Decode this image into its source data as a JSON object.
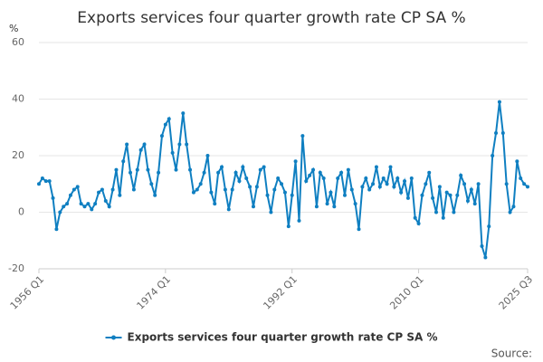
{
  "chart_data": {
    "type": "line",
    "title": "Exports services four quarter growth rate CP SA %",
    "y_unit": "%",
    "source": "Source:",
    "x": [
      1956,
      1956.5,
      1957,
      1957.5,
      1958,
      1958.5,
      1959,
      1959.5,
      1960,
      1960.5,
      1961,
      1961.5,
      1962,
      1962.5,
      1963,
      1963.5,
      1964,
      1964.5,
      1965,
      1965.5,
      1966,
      1966.5,
      1967,
      1967.5,
      1968,
      1968.5,
      1969,
      1969.5,
      1970,
      1970.5,
      1971,
      1971.5,
      1972,
      1972.5,
      1973,
      1973.5,
      1974,
      1974.5,
      1975,
      1975.5,
      1976,
      1976.5,
      1977,
      1977.5,
      1978,
      1978.5,
      1979,
      1979.5,
      1980,
      1980.5,
      1981,
      1981.5,
      1982,
      1982.5,
      1983,
      1983.5,
      1984,
      1984.5,
      1985,
      1985.5,
      1986,
      1986.5,
      1987,
      1987.5,
      1988,
      1988.5,
      1989,
      1989.5,
      1990,
      1990.5,
      1991,
      1991.5,
      1992,
      1992.5,
      1993,
      1993.5,
      1994,
      1994.5,
      1995,
      1995.5,
      1996,
      1996.5,
      1997,
      1997.5,
      1998,
      1998.5,
      1999,
      1999.5,
      2000,
      2000.5,
      2001,
      2001.5,
      2002,
      2002.5,
      2003,
      2003.5,
      2004,
      2004.5,
      2005,
      2005.5,
      2006,
      2006.5,
      2007,
      2007.5,
      2008,
      2008.5,
      2009,
      2009.5,
      2010,
      2010.5,
      2011,
      2011.5,
      2012,
      2012.5,
      2013,
      2013.5,
      2014,
      2014.5,
      2015,
      2015.5,
      2016,
      2016.5,
      2017,
      2017.5,
      2018,
      2018.5,
      2019,
      2019.5,
      2020,
      2020.5,
      2021,
      2021.5,
      2022,
      2022.5,
      2023,
      2023.5,
      2024,
      2024.5,
      2025,
      2025.5
    ],
    "series": [
      {
        "name": "Exports services four quarter growth rate CP SA %",
        "color": "#0f7fc1",
        "values": [
          10,
          12,
          11,
          11,
          5,
          -6,
          0,
          2,
          3,
          6,
          8,
          9,
          3,
          2,
          3,
          1,
          3,
          7,
          8,
          4,
          2,
          8,
          15,
          6,
          18,
          24,
          14,
          8,
          15,
          22,
          24,
          15,
          10,
          6,
          14,
          27,
          31,
          33,
          21,
          15,
          24,
          35,
          24,
          15,
          7,
          8,
          10,
          14,
          20,
          7,
          3,
          14,
          16,
          8,
          1,
          8,
          14,
          11,
          16,
          12,
          9,
          2,
          9,
          15,
          16,
          6,
          0,
          8,
          12,
          10,
          7,
          -5,
          6,
          18,
          -3,
          27,
          11,
          13,
          15,
          2,
          14,
          12,
          3,
          7,
          2,
          12,
          14,
          6,
          15,
          8,
          3,
          -6,
          9,
          12,
          8,
          10,
          16,
          9,
          12,
          10,
          16,
          9,
          12,
          7,
          11,
          5,
          12,
          -2,
          -4,
          6,
          10,
          14,
          5,
          0,
          9,
          -2,
          7,
          6,
          0,
          6,
          13,
          10,
          4,
          8,
          3,
          10,
          -12,
          -16,
          -5,
          20,
          28,
          39,
          28,
          10,
          0,
          2,
          18,
          12,
          10,
          9
        ]
      }
    ],
    "xlim": [
      1956,
      2025.5
    ],
    "xticks": [
      {
        "value": 1956,
        "label": "1956 Q1"
      },
      {
        "value": 1974,
        "label": "1974 Q1"
      },
      {
        "value": 1992,
        "label": "1992 Q1"
      },
      {
        "value": 2010,
        "label": "2010 Q1"
      },
      {
        "value": 2025.5,
        "label": "2025 Q3"
      }
    ],
    "ylim": [
      -20,
      60
    ],
    "yticks": [
      -20,
      0,
      20,
      40,
      60
    ],
    "grid": true
  }
}
